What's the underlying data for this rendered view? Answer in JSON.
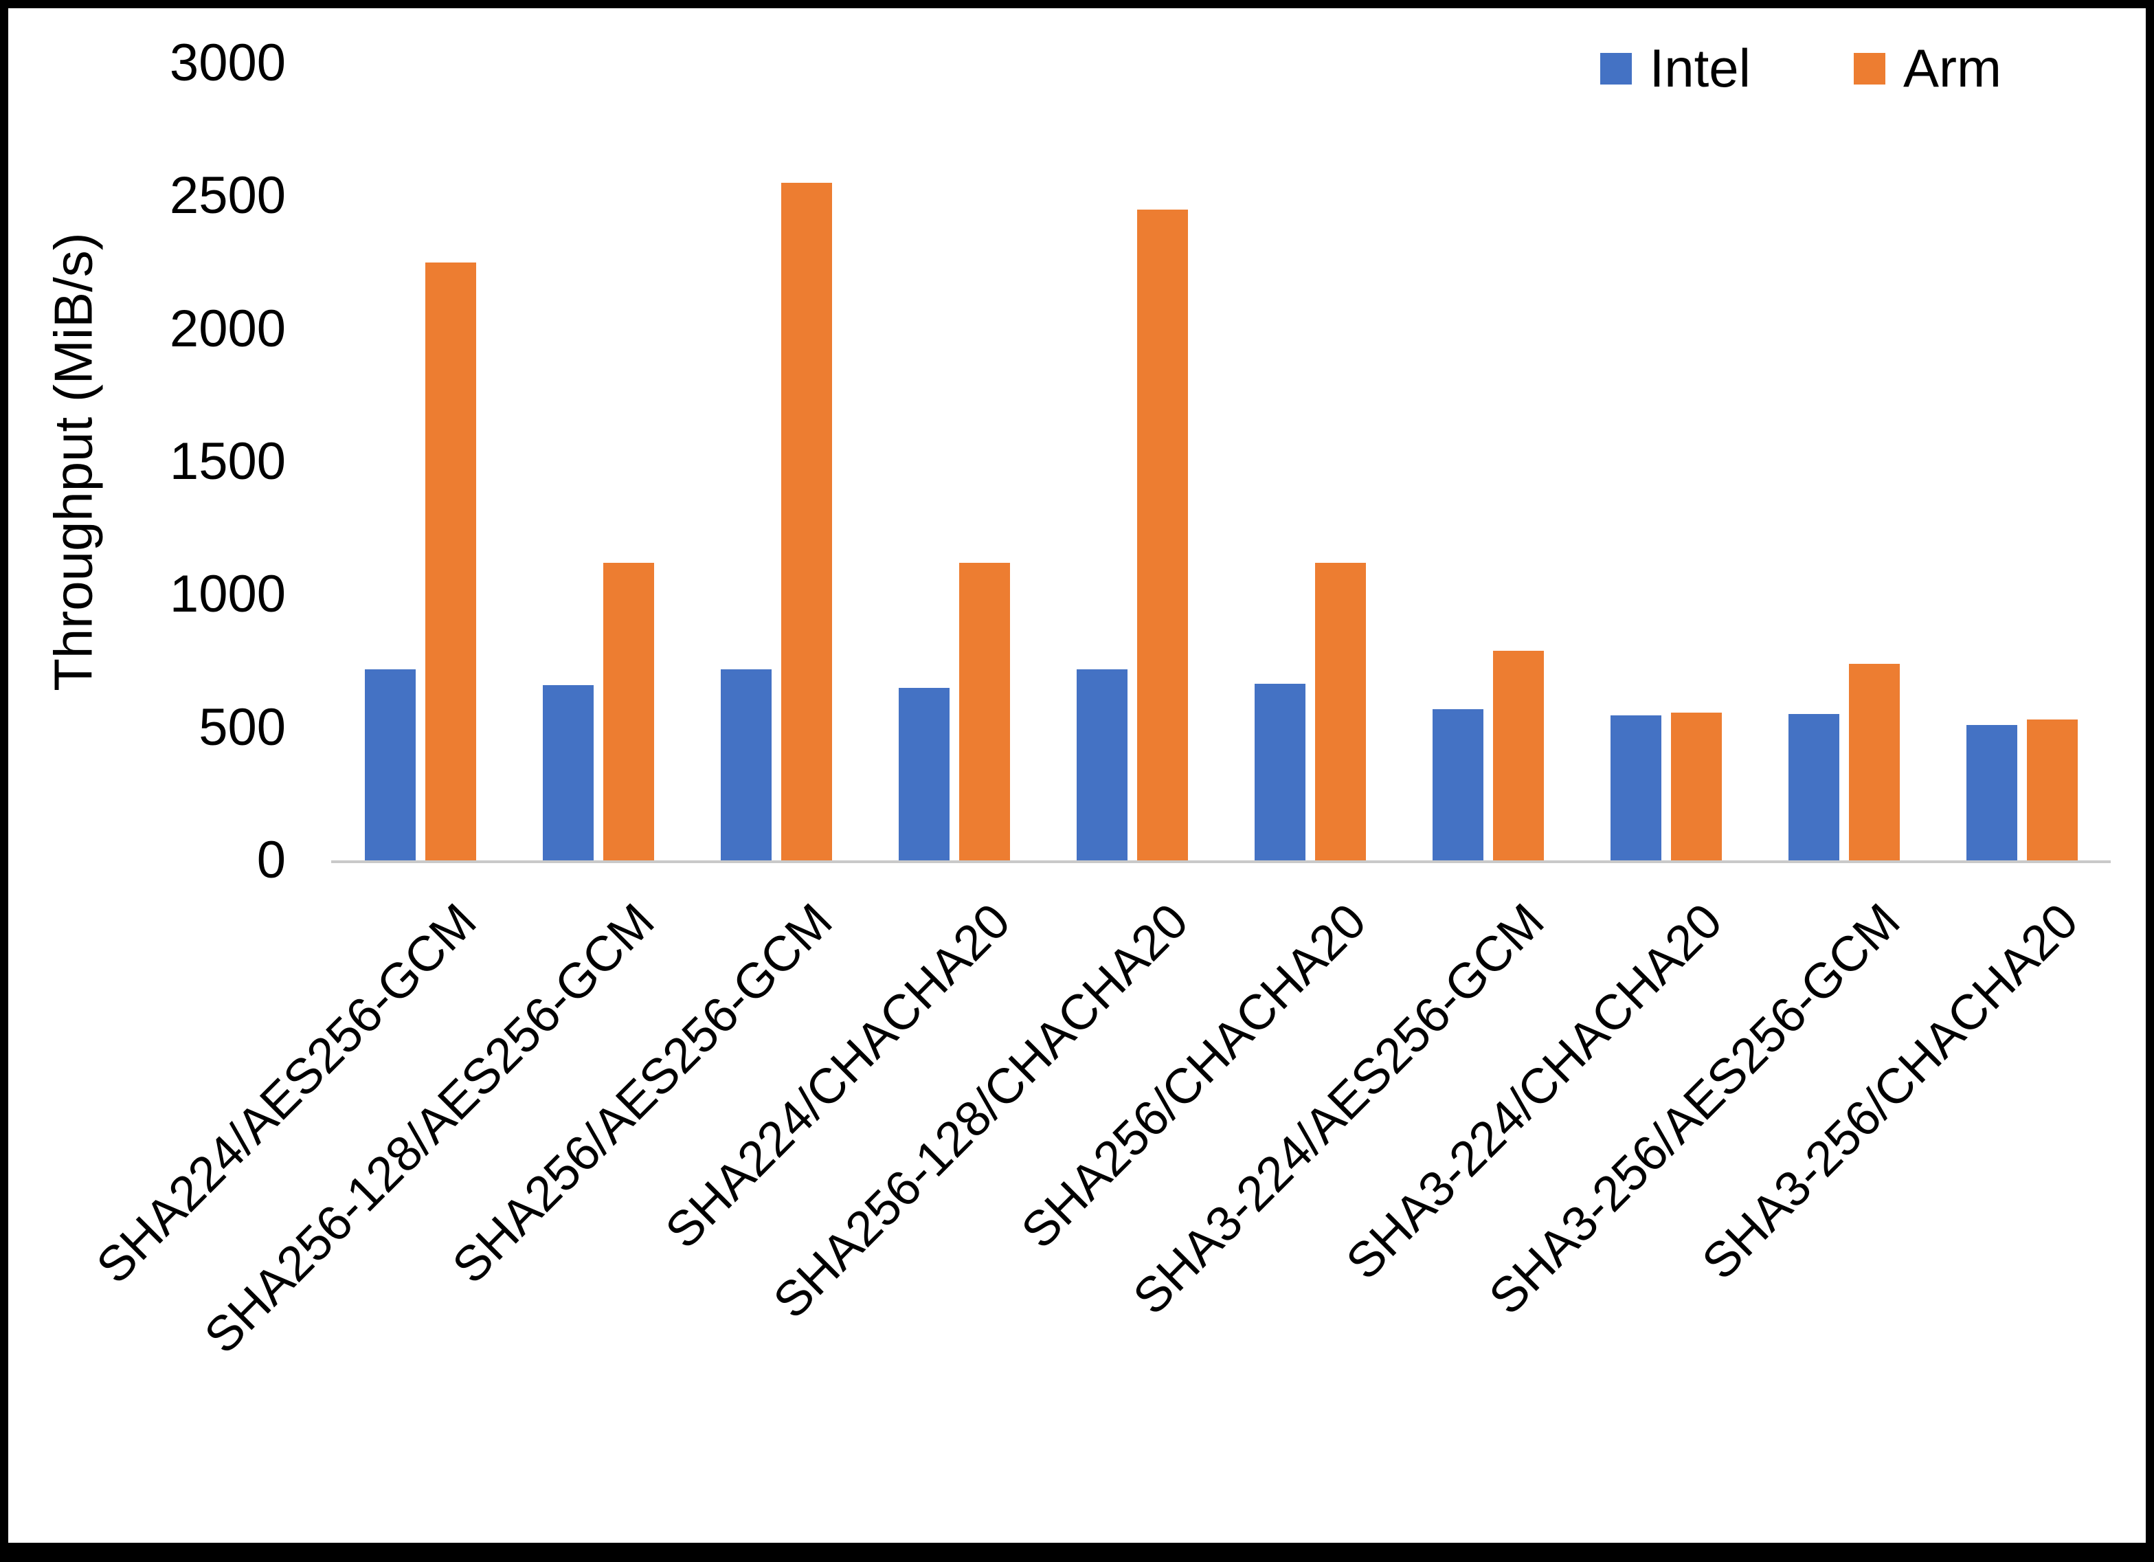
{
  "chart_data": {
    "type": "bar",
    "title": "",
    "xlabel": "",
    "ylabel": "Throughput (MiB/s)",
    "ylim": [
      0,
      3000
    ],
    "yticks": [
      0,
      500,
      1000,
      1500,
      2000,
      2500,
      3000
    ],
    "grid": false,
    "legend_position": "top-right",
    "categories": [
      "SHA224/AES256-GCM",
      "SHA256-128/AES256-GCM",
      "SHA256/AES256-GCM",
      "SHA224/CHACHA20",
      "SHA256-128/CHACHA20",
      "SHA256/CHACHA20",
      "SHA3-224/AES256-GCM",
      "SHA3-224/CHACHA20",
      "SHA3-256/AES256-GCM",
      "SHA3-256/CHACHA20"
    ],
    "series": [
      {
        "name": "Intel",
        "color": "#4472C4",
        "values": [
          720,
          660,
          720,
          650,
          720,
          665,
          570,
          545,
          550,
          510
        ]
      },
      {
        "name": "Arm",
        "color": "#ED7D31",
        "values": [
          2250,
          1120,
          2550,
          1120,
          2450,
          1120,
          790,
          555,
          740,
          530
        ]
      }
    ]
  },
  "colors": {
    "axis_line": "#c9c9c9",
    "frame_border": "#000000",
    "background": "#ffffff"
  }
}
